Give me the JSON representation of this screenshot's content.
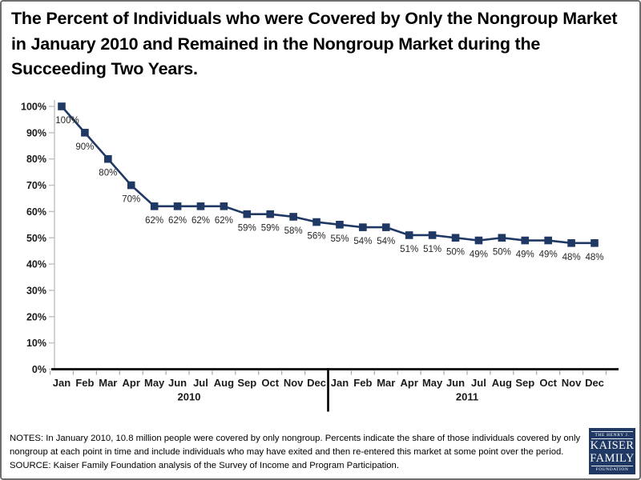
{
  "slide": {
    "title": "The Percent of Individuals who were Covered by Only the Nongroup Market in January 2010 and Remained in the Nongroup Market during the Succeeding Two Years."
  },
  "chart_data": {
    "type": "line",
    "title": "The Percent of Individuals who were Covered by Only the Nongroup Market in January 2010 and Remained in the Nongroup Market during the Succeeding Two Years.",
    "months": [
      "Jan",
      "Feb",
      "Mar",
      "Apr",
      "May",
      "Jun",
      "Jul",
      "Aug",
      "Sep",
      "Oct",
      "Nov",
      "Dec"
    ],
    "year_labels": [
      "2010",
      "2011"
    ],
    "values": [
      100,
      90,
      80,
      70,
      62,
      62,
      62,
      62,
      59,
      59,
      58,
      56,
      55,
      54,
      54,
      51,
      51,
      50,
      49,
      50,
      49,
      49,
      48,
      48
    ],
    "point_labels": [
      "100%",
      "90%",
      "80%",
      "70%",
      "62%",
      "62%",
      "62%",
      "62%",
      "59%",
      "59%",
      "58%",
      "56%",
      "55%",
      "54%",
      "54%",
      "51%",
      "51%",
      "50%",
      "49%",
      "50%",
      "49%",
      "49%",
      "48%",
      "48%"
    ],
    "ytick_labels": [
      "0%",
      "10%",
      "20%",
      "30%",
      "40%",
      "50%",
      "60%",
      "70%",
      "80%",
      "90%",
      "100%"
    ],
    "ylim": [
      0,
      100
    ],
    "xlabel": "",
    "ylabel": "",
    "grid": false,
    "legend": "none",
    "line_color": "#1f3864",
    "marker": "square",
    "axis_color": "#bfbfbf",
    "x_axis_color": "#1a1a1a",
    "point_label_color": "#262626"
  },
  "notes": {
    "notes_text": "NOTES: In January 2010, 10.8 million people were covered by only nongroup.  Percents indicate the share of those individuals covered by only nongroup at each point in time and include individuals who may have exited and then re-entered this market at some point over the period.",
    "source_text": "SOURCE:  Kaiser Family Foundation analysis of the Survey of Income and Program Participation."
  },
  "logo": {
    "line1": "THE HENRY J.",
    "line2": "KAISER",
    "line3": "FAMILY",
    "line4": "FOUNDATION",
    "bg_color": "#1f3864"
  }
}
